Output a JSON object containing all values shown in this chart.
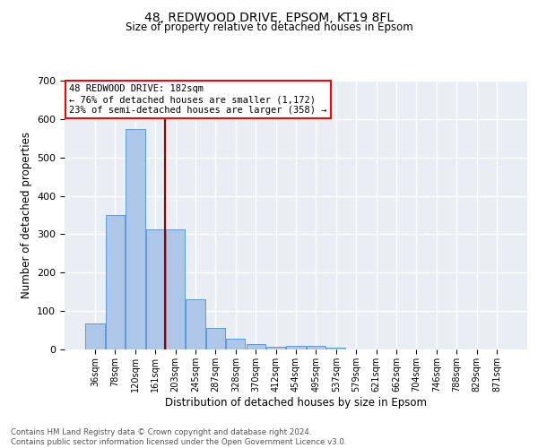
{
  "title": "48, REDWOOD DRIVE, EPSOM, KT19 8FL",
  "subtitle": "Size of property relative to detached houses in Epsom",
  "xlabel": "Distribution of detached houses by size in Epsom",
  "ylabel": "Number of detached properties",
  "bar_labels": [
    "36sqm",
    "78sqm",
    "120sqm",
    "161sqm",
    "203sqm",
    "245sqm",
    "287sqm",
    "328sqm",
    "370sqm",
    "412sqm",
    "454sqm",
    "495sqm",
    "537sqm",
    "579sqm",
    "621sqm",
    "662sqm",
    "704sqm",
    "746sqm",
    "788sqm",
    "829sqm",
    "871sqm"
  ],
  "bar_values": [
    68,
    350,
    575,
    312,
    312,
    130,
    55,
    27,
    15,
    8,
    10,
    10,
    5,
    0,
    0,
    0,
    0,
    0,
    0,
    0,
    0
  ],
  "bar_color": "#AEC6E8",
  "bar_edge_color": "#5B9BD5",
  "annotation_line1": "48 REDWOOD DRIVE: 182sqm",
  "annotation_line2": "← 76% of detached houses are smaller (1,172)",
  "annotation_line3": "23% of semi-detached houses are larger (358) →",
  "annotation_box_color": "white",
  "annotation_box_edge_color": "red",
  "vline_color": "#8B0000",
  "ylim": [
    0,
    700
  ],
  "yticks": [
    0,
    100,
    200,
    300,
    400,
    500,
    600,
    700
  ],
  "background_color": "#E8EEF4",
  "grid_color": "white",
  "footer_line1": "Contains HM Land Registry data © Crown copyright and database right 2024.",
  "footer_line2": "Contains public sector information licensed under the Open Government Licence v3.0."
}
